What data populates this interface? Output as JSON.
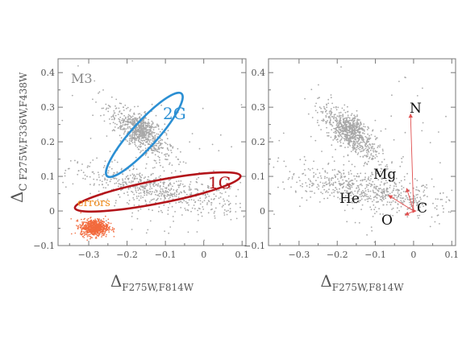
{
  "chart_data": [
    {
      "type": "scatter",
      "panel": "left",
      "xlabel": "Δ",
      "xlabel_sub": "F275W,F814W",
      "ylabel": "Δ",
      "ylabel_sub1": "C",
      "ylabel_sub2": " F275W,F336W,F438W",
      "xlim": [
        -0.38,
        0.11
      ],
      "ylim": [
        -0.1,
        0.44
      ],
      "xticks": [
        -0.3,
        -0.2,
        -0.1,
        0,
        0.1
      ],
      "xtick_labels": [
        "−0.3",
        "−0.2",
        "−0.1",
        "0",
        "0.1"
      ],
      "yticks": [
        -0.1,
        0,
        0.1,
        0.2,
        0.3,
        0.4
      ],
      "ytick_labels": [
        "−0.1",
        "0",
        "0.1",
        "0.2",
        "0.3",
        "0.4"
      ],
      "grid": false,
      "colors": {
        "stars": "#a8a8a8",
        "errors": "#f26a3d",
        "2G": "#2b8fd3",
        "1G": "#b3141a",
        "label": "#888888",
        "errors_label": "#f08a1a"
      },
      "annotations": {
        "cluster": "M3",
        "2G": "2G",
        "1G": "1G",
        "errors": "errors"
      },
      "series": [
        {
          "name": "2G",
          "center": [
            -0.165,
            0.235
          ],
          "sigma": [
            0.05,
            0.04
          ],
          "count": 550
        },
        {
          "name": "1G",
          "center": [
            -0.12,
            0.06
          ],
          "sigma": [
            0.1,
            0.03
          ],
          "count": 650
        },
        {
          "name": "errors",
          "center": [
            -0.285,
            -0.048
          ],
          "sigma": [
            0.018,
            0.012
          ],
          "count": 700
        }
      ],
      "ellipses": [
        {
          "name": "2G",
          "center": [
            -0.155,
            0.22
          ],
          "semi_axes": [
            0.145,
            0.033
          ],
          "angle_deg": -48
        },
        {
          "name": "1G",
          "center": [
            -0.12,
            0.055
          ],
          "semi_axes": [
            0.22,
            0.03
          ],
          "angle_deg": -11
        }
      ]
    },
    {
      "type": "scatter",
      "panel": "right",
      "xlabel": "Δ",
      "xlabel_sub": "F275W,F814W",
      "xlim": [
        -0.38,
        0.11
      ],
      "ylim": [
        -0.1,
        0.44
      ],
      "xticks": [
        -0.3,
        -0.2,
        -0.1,
        0,
        0.1
      ],
      "xtick_labels": [
        "−0.3",
        "−0.2",
        "−0.1",
        "0",
        "0.1"
      ],
      "yticks": [
        -0.1,
        0,
        0.1,
        0.2,
        0.3,
        0.4
      ],
      "ytick_labels": [
        "−0.1",
        "0",
        "0.1",
        "0.2",
        "0.3",
        "0.4"
      ],
      "grid": false,
      "origin": [
        0.0,
        0.0
      ],
      "vectors": [
        {
          "label": "N",
          "dx": -0.008,
          "dy": 0.28
        },
        {
          "label": "Mg",
          "dx": -0.018,
          "dy": 0.065
        },
        {
          "label": "He",
          "dx": -0.065,
          "dy": 0.045
        },
        {
          "label": "O",
          "dx": -0.022,
          "dy": -0.012
        },
        {
          "label": "C",
          "dx": 0.006,
          "dy": 0.0
        }
      ]
    }
  ]
}
